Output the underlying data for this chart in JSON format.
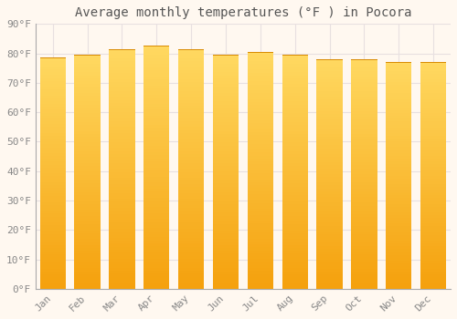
{
  "title": "Average monthly temperatures (°F ) in Pocora",
  "months": [
    "Jan",
    "Feb",
    "Mar",
    "Apr",
    "May",
    "Jun",
    "Jul",
    "Aug",
    "Sep",
    "Oct",
    "Nov",
    "Dec"
  ],
  "values": [
    78.5,
    79.5,
    81.5,
    82.5,
    81.5,
    79.5,
    80.5,
    79.5,
    78.0,
    78.0,
    77.0,
    77.0
  ],
  "ylim": [
    0,
    90
  ],
  "yticks": [
    0,
    10,
    20,
    30,
    40,
    50,
    60,
    70,
    80,
    90
  ],
  "bar_color_top": "#FFD060",
  "bar_color_bottom": "#F0A000",
  "background_color": "#FFF8F0",
  "plot_bg_color": "#FFF8F0",
  "grid_color": "#E8E0E0",
  "title_fontsize": 10,
  "tick_fontsize": 8,
  "title_color": "#555555",
  "tick_color": "#888888"
}
